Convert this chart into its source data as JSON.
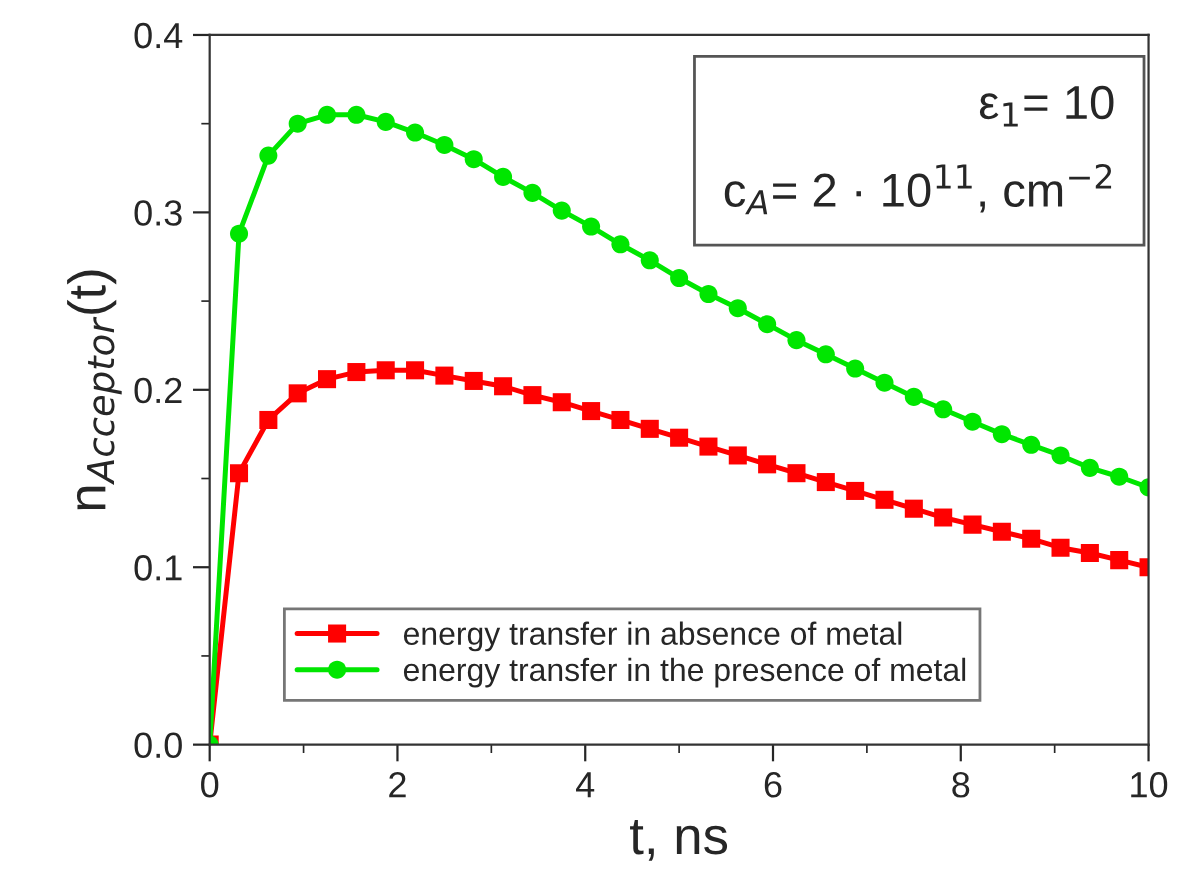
{
  "chart_data": {
    "type": "line",
    "xlabel": "t, ns",
    "ylabel": "n$_{Acceptor}$(t)",
    "x": [
      0,
      0.3125,
      0.625,
      0.9375,
      1.25,
      1.5625,
      1.875,
      2.1875,
      2.5,
      2.8125,
      3.125,
      3.4375,
      3.75,
      4.0625,
      4.375,
      4.6875,
      5,
      5.3125,
      5.625,
      5.9375,
      6.25,
      6.5625,
      6.875,
      7.1875,
      7.5,
      7.8125,
      8.125,
      8.4375,
      8.75,
      9.0625,
      9.375,
      9.6875,
      10
    ],
    "series": [
      {
        "name": "energy transfer in absence of metal",
        "color": "#ff0000",
        "marker": "square",
        "values": [
          0,
          0.153,
          0.183,
          0.198,
          0.206,
          0.21,
          0.211,
          0.211,
          0.208,
          0.205,
          0.202,
          0.197,
          0.193,
          0.188,
          0.183,
          0.178,
          0.173,
          0.168,
          0.163,
          0.158,
          0.153,
          0.148,
          0.143,
          0.138,
          0.133,
          0.128,
          0.124,
          0.12,
          0.116,
          0.111,
          0.108,
          0.104,
          0.1
        ]
      },
      {
        "name": "energy transfer in the presence of metal",
        "color": "#00e600",
        "marker": "circle",
        "values": [
          0,
          0.288,
          0.332,
          0.35,
          0.355,
          0.355,
          0.351,
          0.345,
          0.338,
          0.33,
          0.32,
          0.311,
          0.301,
          0.292,
          0.282,
          0.273,
          0.263,
          0.254,
          0.246,
          0.237,
          0.228,
          0.22,
          0.212,
          0.204,
          0.196,
          0.189,
          0.182,
          0.175,
          0.169,
          0.163,
          0.156,
          0.151,
          0.145
        ]
      }
    ],
    "xlim": [
      0,
      10
    ],
    "xticks": [
      0,
      {
        "value": 1,
        "label": null
      },
      2,
      {
        "value": 3,
        "label": null
      },
      4,
      {
        "value": 5,
        "label": null
      },
      6,
      {
        "value": 7,
        "label": null
      },
      8,
      {
        "value": 9,
        "label": null
      },
      10
    ],
    "ylim": [
      0,
      0.4
    ],
    "yticks": [
      {
        "value": 0,
        "label": "0.0"
      },
      {
        "value": 0.05,
        "label": null
      },
      0.1,
      {
        "value": 0.15,
        "label": null
      },
      0.2,
      {
        "value": 0.25,
        "label": null
      },
      0.3,
      {
        "value": 0.35,
        "label": null
      },
      0.4
    ],
    "annotations": [
      "ε$_{1}$= 10",
      "c$_{A}$= 2 · 10$^{11}$, cm$^{−2}$"
    ],
    "legend": "bottom",
    "grid": false,
    "line_style": "solid"
  }
}
